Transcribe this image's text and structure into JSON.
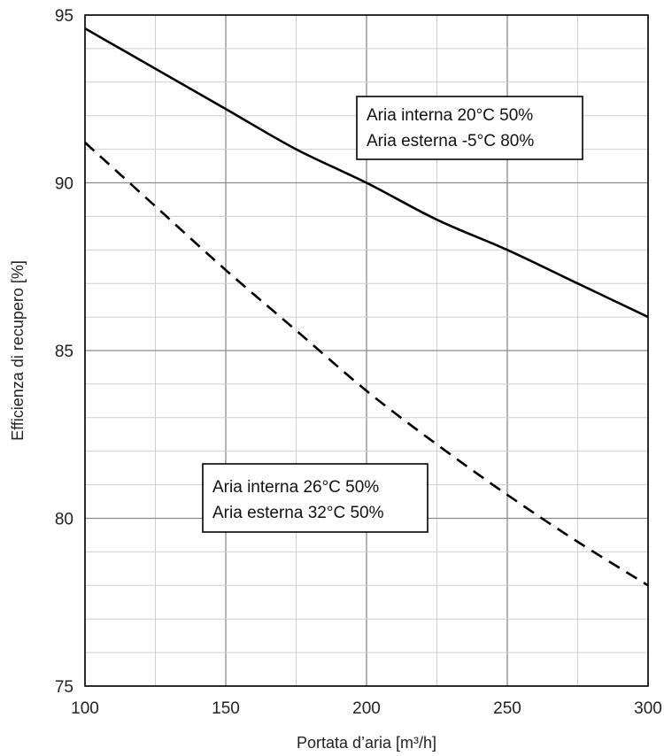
{
  "chart_data": {
    "type": "line",
    "title": "",
    "xlabel": "Portata d’aria [m³/h]",
    "ylabel": "Efficienza di recupero [%]",
    "xlim": [
      100,
      300
    ],
    "ylim": [
      75,
      95
    ],
    "x_ticks": [
      100,
      150,
      200,
      250,
      300
    ],
    "y_ticks": [
      75,
      80,
      85,
      90,
      95
    ],
    "x_minor_step": 25,
    "y_minor_step": 1,
    "grid": true,
    "series": [
      {
        "line_style": "solid",
        "color": "#000000",
        "x": [
          100,
          125,
          150,
          175,
          200,
          225,
          250,
          275,
          300
        ],
        "y": [
          94.6,
          93.4,
          92.2,
          91.0,
          90.0,
          88.9,
          88.0,
          87.0,
          86.0
        ]
      },
      {
        "line_style": "dashed",
        "color": "#000000",
        "x": [
          100,
          125,
          150,
          175,
          200,
          225,
          250,
          275,
          300
        ],
        "y": [
          91.2,
          89.3,
          87.4,
          85.6,
          83.8,
          82.2,
          80.7,
          79.3,
          78.0
        ]
      }
    ],
    "annotations": [
      {
        "lines": [
          "Aria interna 20°C 50%",
          "Aria esterna -5°C 80%"
        ]
      },
      {
        "lines": [
          "Aria interna 26°C 50%",
          "Aria esterna 32°C 50%"
        ]
      }
    ]
  }
}
